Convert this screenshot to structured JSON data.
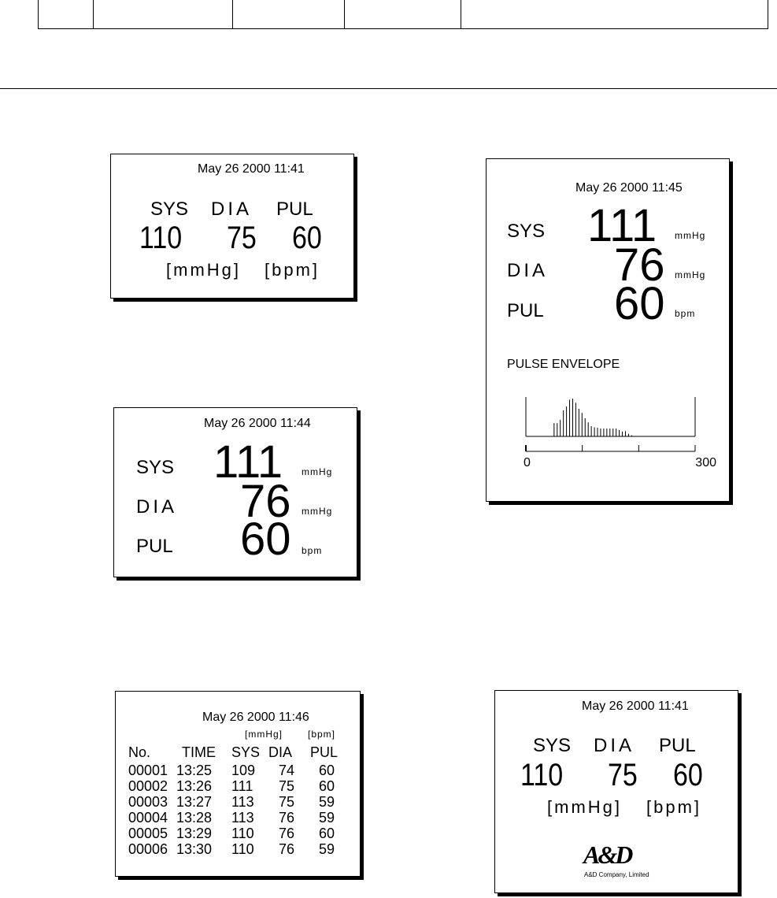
{
  "header_table": {
    "cells": [
      "",
      "",
      "",
      "",
      ""
    ]
  },
  "screen_basic": {
    "date": "May  26 2000 11:41",
    "labels": [
      "SYS",
      "DIA",
      "PUL"
    ],
    "values": [
      "110",
      "75",
      "60"
    ],
    "units": [
      "[mmHg]",
      "[bpm]"
    ]
  },
  "screen_large": {
    "date": "May  26 2000 11:44",
    "rows": [
      {
        "label": "SYS",
        "value": "111",
        "unit": "mmHg"
      },
      {
        "label": "DIA",
        "value": "76",
        "unit": "mmHg"
      },
      {
        "label": "PUL",
        "value": "60",
        "unit": "bpm"
      }
    ]
  },
  "screen_envelope": {
    "date": "May  26 2000 11:45",
    "rows": [
      {
        "label": "SYS",
        "value": "111",
        "unit": "mmHg"
      },
      {
        "label": "DIA",
        "value": "76",
        "unit": "mmHg"
      },
      {
        "label": "PUL",
        "value": "60",
        "unit": "bpm"
      }
    ],
    "envelope_title": "PULSE ENVELOPE",
    "chart_data": {
      "type": "bar",
      "xlim": [
        0,
        300
      ],
      "x_ticks": [
        0,
        100,
        200,
        300
      ],
      "x_tick_labels": [
        "0",
        "300"
      ],
      "x": [
        50,
        55.5,
        61,
        66.5,
        72,
        77.5,
        83,
        88.5,
        94,
        99.5,
        105,
        110.5,
        116,
        121.5,
        127,
        132.5,
        138,
        143.5,
        149,
        154.5,
        160,
        165.5,
        171,
        176.5,
        182,
        187.5
      ],
      "values": [
        0.35,
        0.35,
        0.44,
        0.69,
        0.79,
        0.97,
        1.0,
        0.89,
        0.73,
        0.62,
        0.48,
        0.37,
        0.27,
        0.24,
        0.23,
        0.21,
        0.21,
        0.21,
        0.21,
        0.21,
        0.21,
        0.17,
        0.13,
        0.14,
        0.07,
        0.03
      ]
    }
  },
  "screen_memory": {
    "date": "May  26 2000 11:46",
    "units": [
      "[mmHg]",
      "[bpm]"
    ],
    "columns": [
      "No.",
      "TIME",
      "SYS",
      "DIA",
      "PUL"
    ],
    "rows": [
      [
        "00001",
        "13:25",
        "109",
        "74",
        "60"
      ],
      [
        "00002",
        "13:26",
        "111",
        "75",
        "60"
      ],
      [
        "00003",
        "13:27",
        "113",
        "75",
        "59"
      ],
      [
        "00004",
        "13:28",
        "113",
        "76",
        "59"
      ],
      [
        "00005",
        "13:29",
        "110",
        "76",
        "60"
      ],
      [
        "00006",
        "13:30",
        "110",
        "76",
        "59"
      ]
    ]
  },
  "screen_logo": {
    "date": "May  26 2000 11:41",
    "labels": [
      "SYS",
      "DIA",
      "PUL"
    ],
    "values": [
      "110",
      "75",
      "60"
    ],
    "units": [
      "[mmHg]",
      "[bpm]"
    ],
    "logo_text": "A&D",
    "company": "A&D Company, Limited"
  }
}
